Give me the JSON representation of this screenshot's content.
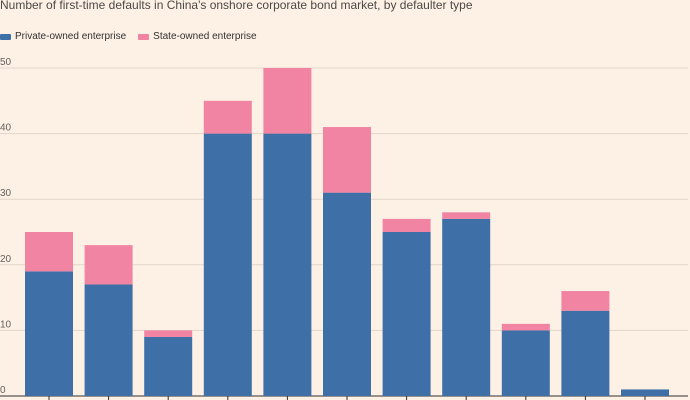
{
  "chart_data": {
    "type": "bar",
    "stacked": true,
    "title": "Number of first-time defaults in China's onshore corporate bond market, by defaulter type",
    "xlabel": "",
    "ylabel": "",
    "categories": [
      "",
      "",
      "",
      "",
      "",
      "",
      "",
      "",
      "",
      "",
      ""
    ],
    "series": [
      {
        "name": "Private-owned enterprise",
        "color": "#3f6fa7",
        "values": [
          19,
          17,
          9,
          40,
          40,
          31,
          25,
          27,
          10,
          13,
          1
        ]
      },
      {
        "name": "State-owned enterprise",
        "color": "#f084a2",
        "values": [
          6,
          6,
          1,
          5,
          10,
          10,
          2,
          1,
          1,
          3,
          0
        ]
      }
    ],
    "ylim": [
      0,
      50
    ],
    "yticks": [
      0,
      10,
      20,
      30,
      40,
      50
    ],
    "grid": true,
    "legend_position": "top-left"
  }
}
